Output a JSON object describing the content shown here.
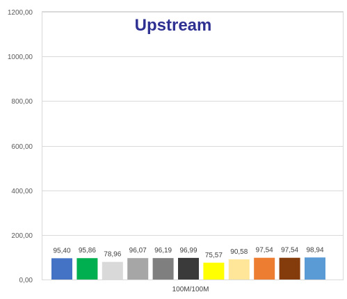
{
  "chart_data": {
    "type": "bar",
    "title": "Upstream",
    "categories": [
      "100M/100M"
    ],
    "series": [
      {
        "values": [
          95.4
        ],
        "color": "#4472c4"
      },
      {
        "values": [
          95.86
        ],
        "color": "#00b050"
      },
      {
        "values": [
          78.96
        ],
        "color": "#d9d9d9"
      },
      {
        "values": [
          96.07
        ],
        "color": "#a6a6a6"
      },
      {
        "values": [
          96.19
        ],
        "color": "#7f7f7f"
      },
      {
        "values": [
          96.99
        ],
        "color": "#3a3a3a"
      },
      {
        "values": [
          75.57
        ],
        "color": "#ffff00"
      },
      {
        "values": [
          90.58
        ],
        "color": "#ffe699"
      },
      {
        "values": [
          97.54
        ],
        "color": "#ed7d31"
      },
      {
        "values": [
          97.54
        ],
        "color": "#843c0c"
      },
      {
        "values": [
          98.94
        ],
        "color": "#5b9bd5"
      }
    ],
    "value_labels": [
      "95,40",
      "95,86",
      "78,96",
      "96,07",
      "96,19",
      "96,99",
      "75,57",
      "90,58",
      "97,54",
      "97,54",
      "98,94"
    ],
    "y_ticks": [
      "0,00",
      "200,00",
      "400,00",
      "600,00",
      "800,00",
      "1000,00",
      "1200,00"
    ],
    "ylim": [
      0,
      1200
    ],
    "xlabel": "",
    "ylabel": "",
    "grid": true,
    "legend": "none"
  }
}
